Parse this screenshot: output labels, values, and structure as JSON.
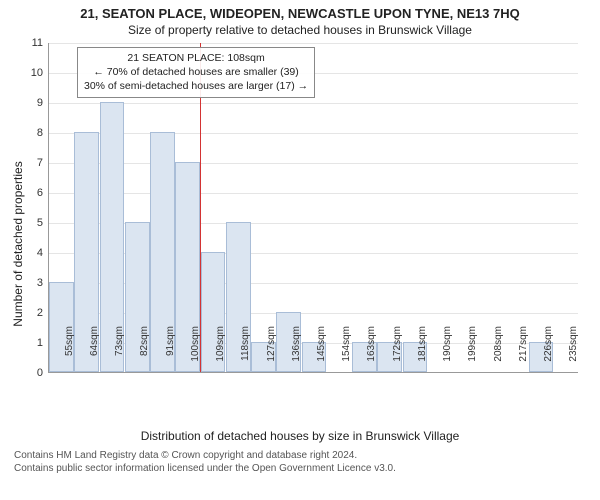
{
  "title_main": "21, SEATON PLACE, WIDEOPEN, NEWCASTLE UPON TYNE, NE13 7HQ",
  "title_sub": "Size of property relative to detached houses in Brunswick Village",
  "ylabel": "Number of detached properties",
  "xlabel": "Distribution of detached houses by size in Brunswick Village",
  "footer_line1": "Contains HM Land Registry data © Crown copyright and database right 2024.",
  "footer_line2": "Contains public sector information licensed under the Open Government Licence v3.0.",
  "chart": {
    "type": "histogram",
    "y_max": 11,
    "y_ticks": [
      0,
      1,
      2,
      3,
      4,
      5,
      6,
      7,
      8,
      9,
      10,
      11
    ],
    "bar_fill": "#dbe5f1",
    "bar_border": "#a9bdd7",
    "grid_color": "#e5e5e5",
    "axis_color": "#999999",
    "ref_line_color": "#d33333",
    "ref_line_x_index": 6,
    "background": "#ffffff",
    "categories": [
      "55sqm",
      "64sqm",
      "73sqm",
      "82sqm",
      "91sqm",
      "100sqm",
      "109sqm",
      "118sqm",
      "127sqm",
      "136sqm",
      "145sqm",
      "154sqm",
      "163sqm",
      "172sqm",
      "181sqm",
      "190sqm",
      "199sqm",
      "208sqm",
      "217sqm",
      "226sqm",
      "235sqm"
    ],
    "values": [
      3,
      8,
      9,
      5,
      8,
      7,
      4,
      5,
      1,
      2,
      1,
      0,
      1,
      1,
      1,
      0,
      0,
      0,
      0,
      1,
      0
    ],
    "annotation": {
      "line1": "21 SEATON PLACE: 108sqm",
      "line2": "← 70% of detached houses are smaller (39)",
      "line3": "30% of semi-detached houses are larger (17) →"
    }
  }
}
